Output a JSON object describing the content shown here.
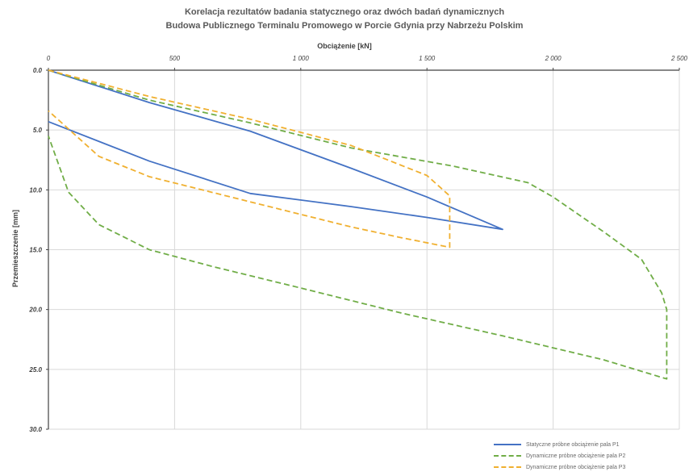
{
  "chart_data": {
    "type": "line",
    "title": "Korelacja rezultatów badania statycznego oraz dwóch badań dynamicznych",
    "subtitle": "Budowa Publicznego Terminalu Promowego w Porcie Gdynia przy Nabrzeżu Polskim",
    "xlabel": "Obciążenie [kN]",
    "ylabel": "Przemieszczenie [mm]",
    "xlim": [
      0,
      2500
    ],
    "ylim": [
      0,
      30
    ],
    "x_axis_position": "top",
    "y_axis_inverted": true,
    "x_ticks": [
      0,
      500,
      1000,
      1500,
      2000,
      2500
    ],
    "x_tick_labels": [
      "0",
      "500",
      "1 000",
      "1 500",
      "2 000",
      "2 500"
    ],
    "y_ticks": [
      0,
      5,
      10,
      15,
      20,
      25,
      30
    ],
    "y_tick_labels": [
      "0.0",
      "5.0",
      "10.0",
      "15.0",
      "20.0",
      "25.0",
      "30.0"
    ],
    "grid": true,
    "legend_position": "bottom-right",
    "series": [
      {
        "name": "Statyczne próbne obciążenie pala P1",
        "color": "#4472C4",
        "dash": "solid",
        "points": [
          [
            0,
            0
          ],
          [
            400,
            2.7
          ],
          [
            800,
            5.1
          ],
          [
            1200,
            8.2
          ],
          [
            1500,
            10.6
          ],
          [
            1800,
            13.3
          ],
          [
            1500,
            12.3
          ],
          [
            1200,
            11.4
          ],
          [
            800,
            10.3
          ],
          [
            400,
            7.6
          ],
          [
            0,
            4.3
          ]
        ]
      },
      {
        "name": "Dynamiczne próbne obciążenie pala P2",
        "color": "#70AD47",
        "dash": "dashed",
        "points": [
          [
            0,
            0
          ],
          [
            400,
            2.5
          ],
          [
            800,
            4.4
          ],
          [
            1200,
            6.5
          ],
          [
            1600,
            8.0
          ],
          [
            1900,
            9.4
          ],
          [
            2000,
            10.6
          ],
          [
            2200,
            13.5
          ],
          [
            2350,
            15.8
          ],
          [
            2430,
            18.6
          ],
          [
            2450,
            20.0
          ],
          [
            2450,
            25.8
          ],
          [
            2200,
            24.2
          ],
          [
            1800,
            22.2
          ],
          [
            1400,
            20.3
          ],
          [
            1000,
            18.2
          ],
          [
            650,
            16.4
          ],
          [
            400,
            15.0
          ],
          [
            200,
            12.9
          ],
          [
            80,
            10.2
          ],
          [
            0,
            5.5
          ]
        ]
      },
      {
        "name": "Dynamiczne próbne obciążenie pala P3",
        "color": "#F0B030",
        "dash": "dashed",
        "points": [
          [
            0,
            0
          ],
          [
            400,
            2.2
          ],
          [
            800,
            4.1
          ],
          [
            1200,
            6.3
          ],
          [
            1500,
            8.8
          ],
          [
            1590,
            10.5
          ],
          [
            1590,
            14.8
          ],
          [
            1400,
            14.0
          ],
          [
            1200,
            13.1
          ],
          [
            800,
            11.0
          ],
          [
            400,
            8.9
          ],
          [
            200,
            7.2
          ],
          [
            0,
            3.4
          ]
        ]
      }
    ]
  }
}
